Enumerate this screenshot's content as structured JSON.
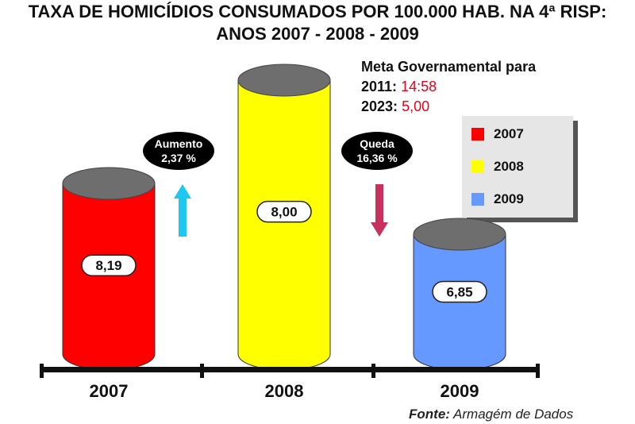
{
  "title_line1": "TAXA DE HOMICÍDIOS CONSUMADOS POR 100.000 HAB. NA 4ª RISP:",
  "title_line2": "ANOS 2007 - 2008 - 2009",
  "meta": {
    "heading": "Meta Governamental para",
    "items": [
      {
        "year": "2011:",
        "value": "14:58"
      },
      {
        "year": "2023:",
        "value": "5,00"
      }
    ]
  },
  "changes": [
    {
      "label": "Aumento",
      "value": "2,37 %",
      "direction": "up",
      "color": "#1ec8f0"
    },
    {
      "label": "Queda",
      "value": "16,36 %",
      "direction": "down",
      "color": "#c8305e"
    }
  ],
  "source": {
    "label": "Fonte:",
    "text": " Armagém de Dados"
  },
  "chart_data": {
    "type": "bar",
    "categories": [
      "2007",
      "2008",
      "2009"
    ],
    "values": [
      8.19,
      8.0,
      6.85
    ],
    "value_labels": [
      "8,19",
      "8,00",
      "6,85"
    ],
    "colors": [
      "#ff0000",
      "#ffff00",
      "#6699ff"
    ],
    "legend": [
      "2007",
      "2008",
      "2009"
    ],
    "legend_position": "right",
    "title": "TAXA DE HOMICÍDIOS CONSUMADOS POR 100.000 HAB. NA 4ª RISP: ANOS 2007 - 2008 - 2009",
    "xlabel": "",
    "ylabel": ""
  }
}
